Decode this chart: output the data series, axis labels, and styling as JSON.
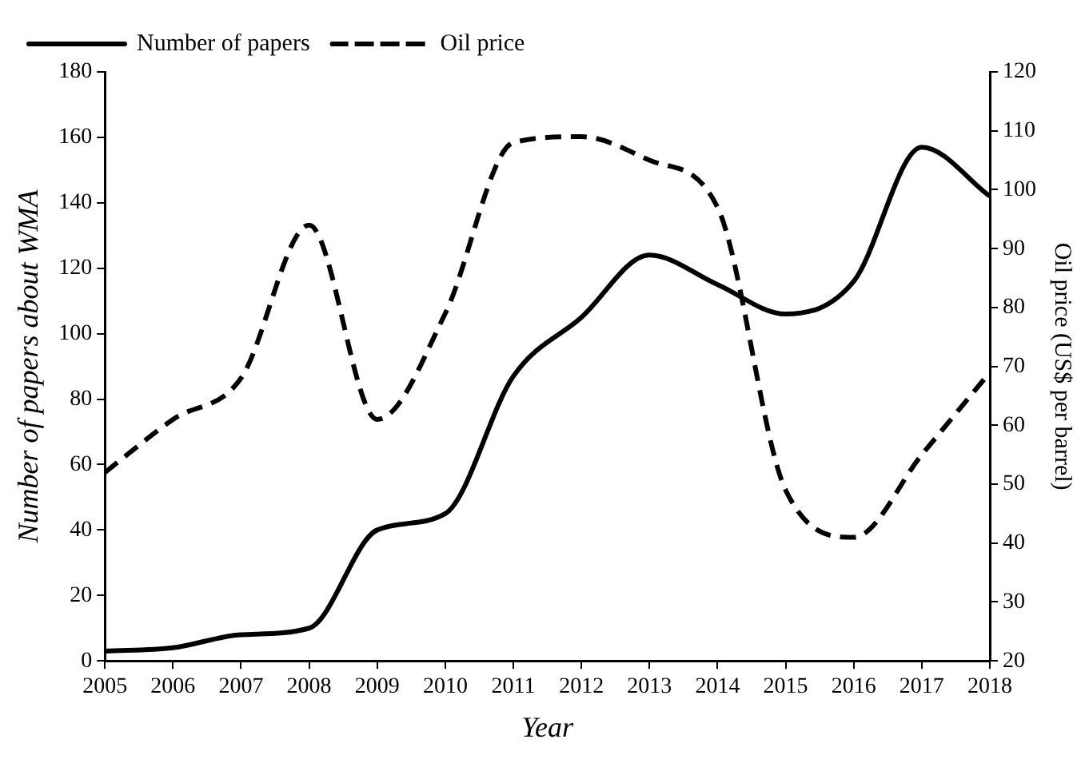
{
  "chart_data": {
    "type": "line",
    "xlabel": "Year",
    "ylabel": "Number of papers about WMA",
    "y2label": "Oil price (US$ per barrel)",
    "x": [
      2005,
      2006,
      2007,
      2008,
      2009,
      2010,
      2011,
      2012,
      2013,
      2014,
      2015,
      2016,
      2017,
      2018
    ],
    "series": [
      {
        "name": "Number of papers",
        "color": "#000000",
        "line_style": "solid",
        "values": [
          3,
          4,
          8,
          10,
          40,
          45,
          87,
          105,
          124,
          115,
          106,
          116,
          157,
          142
        ]
      },
      {
        "name": "Oil price",
        "color": "#000000",
        "line_style": "dashed",
        "axis": "y2",
        "values": [
          52,
          61,
          68,
          94,
          61,
          79,
          108,
          109,
          105,
          97,
          49,
          41,
          55,
          69
        ]
      }
    ],
    "xlim": [
      2005,
      2018
    ],
    "xticks": [
      2005,
      2006,
      2007,
      2008,
      2009,
      2010,
      2011,
      2012,
      2013,
      2014,
      2015,
      2016,
      2017,
      2018
    ],
    "ylim": [
      0,
      180
    ],
    "yticks": [
      0,
      20,
      40,
      60,
      80,
      100,
      120,
      140,
      160,
      180
    ],
    "y2lim": [
      20,
      120
    ],
    "y2ticks": [
      20,
      30,
      40,
      50,
      60,
      70,
      80,
      90,
      100,
      110,
      120
    ],
    "grid": false,
    "legend": "top left",
    "marker": "none"
  }
}
